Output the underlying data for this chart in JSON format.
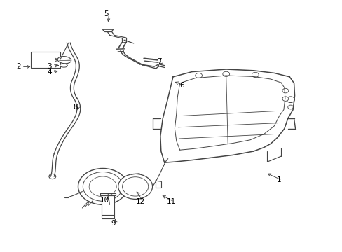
{
  "background_color": "#ffffff",
  "line_color": "#444444",
  "label_color": "#000000",
  "figsize": [
    4.89,
    3.6
  ],
  "dpi": 100,
  "label_positions": {
    "1": [
      0.815,
      0.285,
      0.775,
      0.315
    ],
    "2": [
      0.055,
      0.735,
      0.095,
      0.735
    ],
    "3": [
      0.145,
      0.735,
      0.175,
      0.745
    ],
    "4": [
      0.145,
      0.715,
      0.175,
      0.718
    ],
    "5": [
      0.31,
      0.945,
      0.315,
      0.905
    ],
    "6": [
      0.53,
      0.66,
      0.505,
      0.678
    ],
    "7": [
      0.465,
      0.755,
      0.46,
      0.74
    ],
    "8": [
      0.22,
      0.575,
      0.225,
      0.555
    ],
    "9": [
      0.33,
      0.115,
      0.335,
      0.14
    ],
    "10": [
      0.305,
      0.205,
      0.315,
      0.23
    ],
    "11": [
      0.5,
      0.2,
      0.468,
      0.228
    ],
    "12": [
      0.41,
      0.2,
      0.395,
      0.248
    ]
  }
}
